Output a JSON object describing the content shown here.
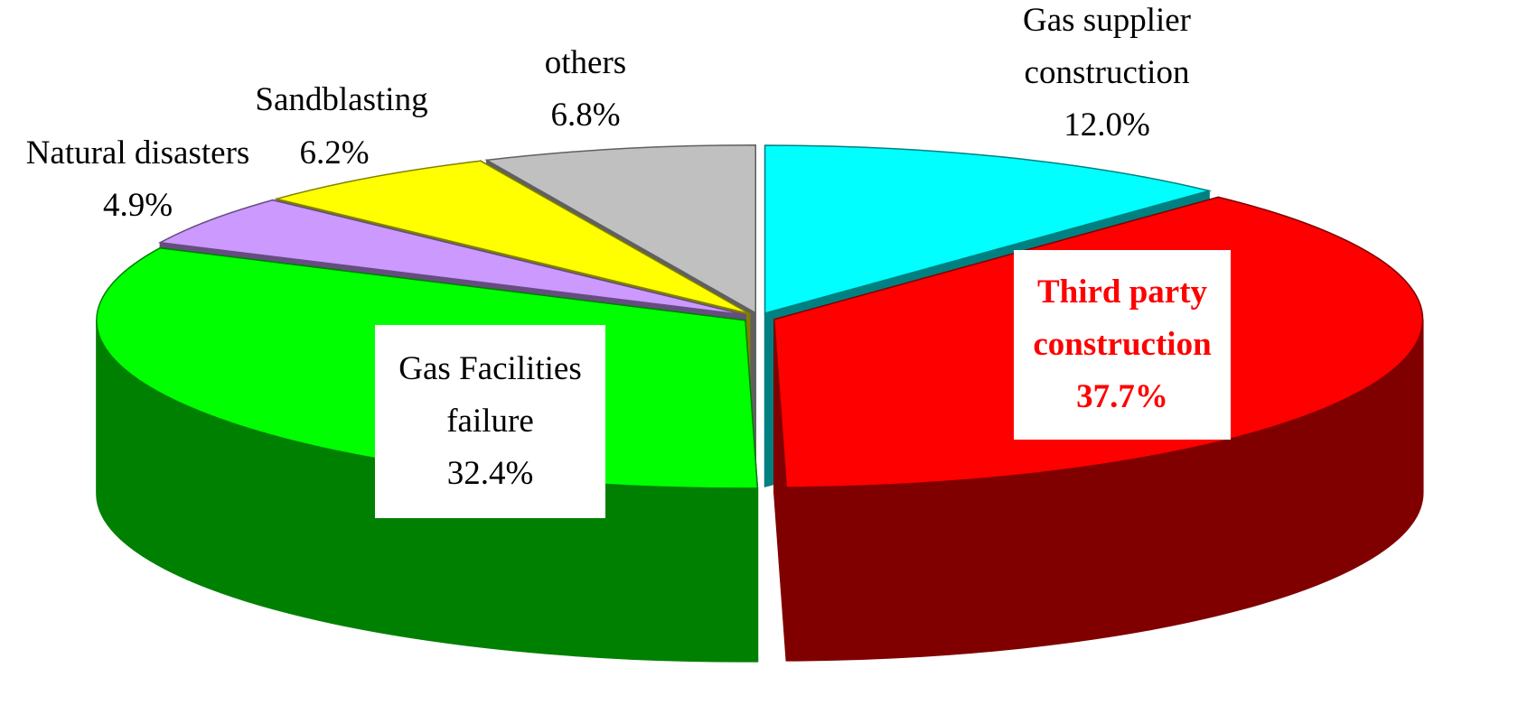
{
  "chart_data": {
    "type": "pie",
    "categories": [
      "Gas supplier construction",
      "Third party construction",
      "Gas Facilities failure",
      "Natural disasters",
      "Sandblasting",
      "others"
    ],
    "values": [
      12.0,
      37.7,
      32.4,
      4.9,
      6.2,
      6.8
    ],
    "value_labels": [
      "12.0%",
      "37.7%",
      "32.4%",
      "4.9%",
      "6.2%",
      "6.8%"
    ],
    "colors": [
      "#00ffff",
      "#ff0000",
      "#00ff00",
      "#cc99ff",
      "#ffff00",
      "#c0c0c0"
    ],
    "three_d": true
  }
}
